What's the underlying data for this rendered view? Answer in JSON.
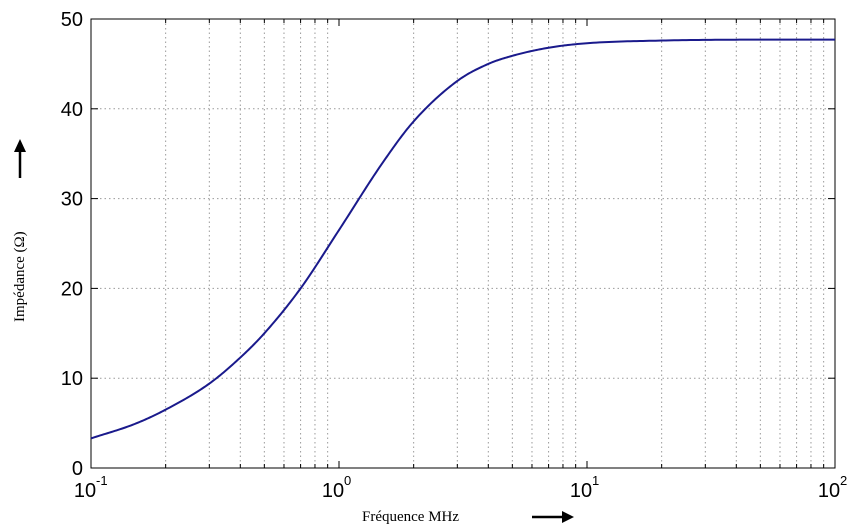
{
  "chart_data": {
    "type": "line",
    "xscale": "log",
    "xlabel": "Fréquence MHz",
    "ylabel": "Impédance (Ω)",
    "xlim": [
      0.1,
      100
    ],
    "ylim": [
      0,
      50
    ],
    "grid": true,
    "x_ticks": [
      {
        "base": "10",
        "exp": "-1",
        "value": 0.1
      },
      {
        "base": "10",
        "exp": "0",
        "value": 1
      },
      {
        "base": "10",
        "exp": "1",
        "value": 10
      },
      {
        "base": "10",
        "exp": "2",
        "value": 100
      }
    ],
    "y_ticks": [
      "0",
      "10",
      "20",
      "30",
      "40",
      "50"
    ],
    "series": [
      {
        "color": "#1a1a8c",
        "x": [
          0.1,
          0.15,
          0.2,
          0.3,
          0.4,
          0.5,
          0.7,
          1,
          1.5,
          2,
          3,
          4,
          5,
          7,
          10,
          20,
          50,
          100
        ],
        "y": [
          3.3,
          4.9,
          6.5,
          9.4,
          12.3,
          15.0,
          20.0,
          26.5,
          34.0,
          38.6,
          43.1,
          45.0,
          45.9,
          46.8,
          47.3,
          47.6,
          47.7,
          47.7
        ]
      }
    ]
  }
}
